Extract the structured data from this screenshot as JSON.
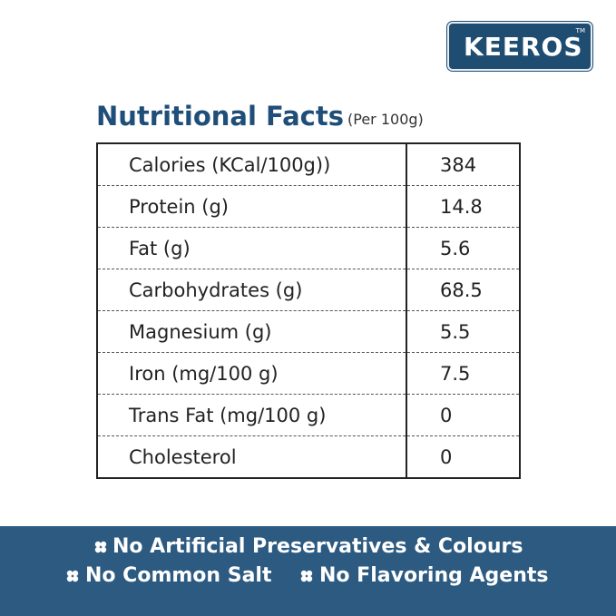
{
  "brand": {
    "name": "KEEROS",
    "trademark": "TM"
  },
  "header": {
    "title": "Nutritional Facts",
    "subtitle": "(Per 100g)"
  },
  "table": {
    "rows": [
      [
        "Calories (KCal/100g))",
        "384"
      ],
      [
        "Protein (g)",
        "14.8"
      ],
      [
        "Fat (g)",
        "5.6"
      ],
      [
        "Carbohydrates (g)",
        "68.5"
      ],
      [
        "Magnesium (g)",
        "5.5"
      ],
      [
        "Iron (mg/100 g)",
        "7.5"
      ],
      [
        "Trans Fat (mg/100 g)",
        "0"
      ],
      [
        "Cholesterol",
        "0"
      ]
    ]
  },
  "features": [
    "No Artificial Preservatives & Colours",
    "No Common Salt",
    "No Flavoring Agents"
  ]
}
